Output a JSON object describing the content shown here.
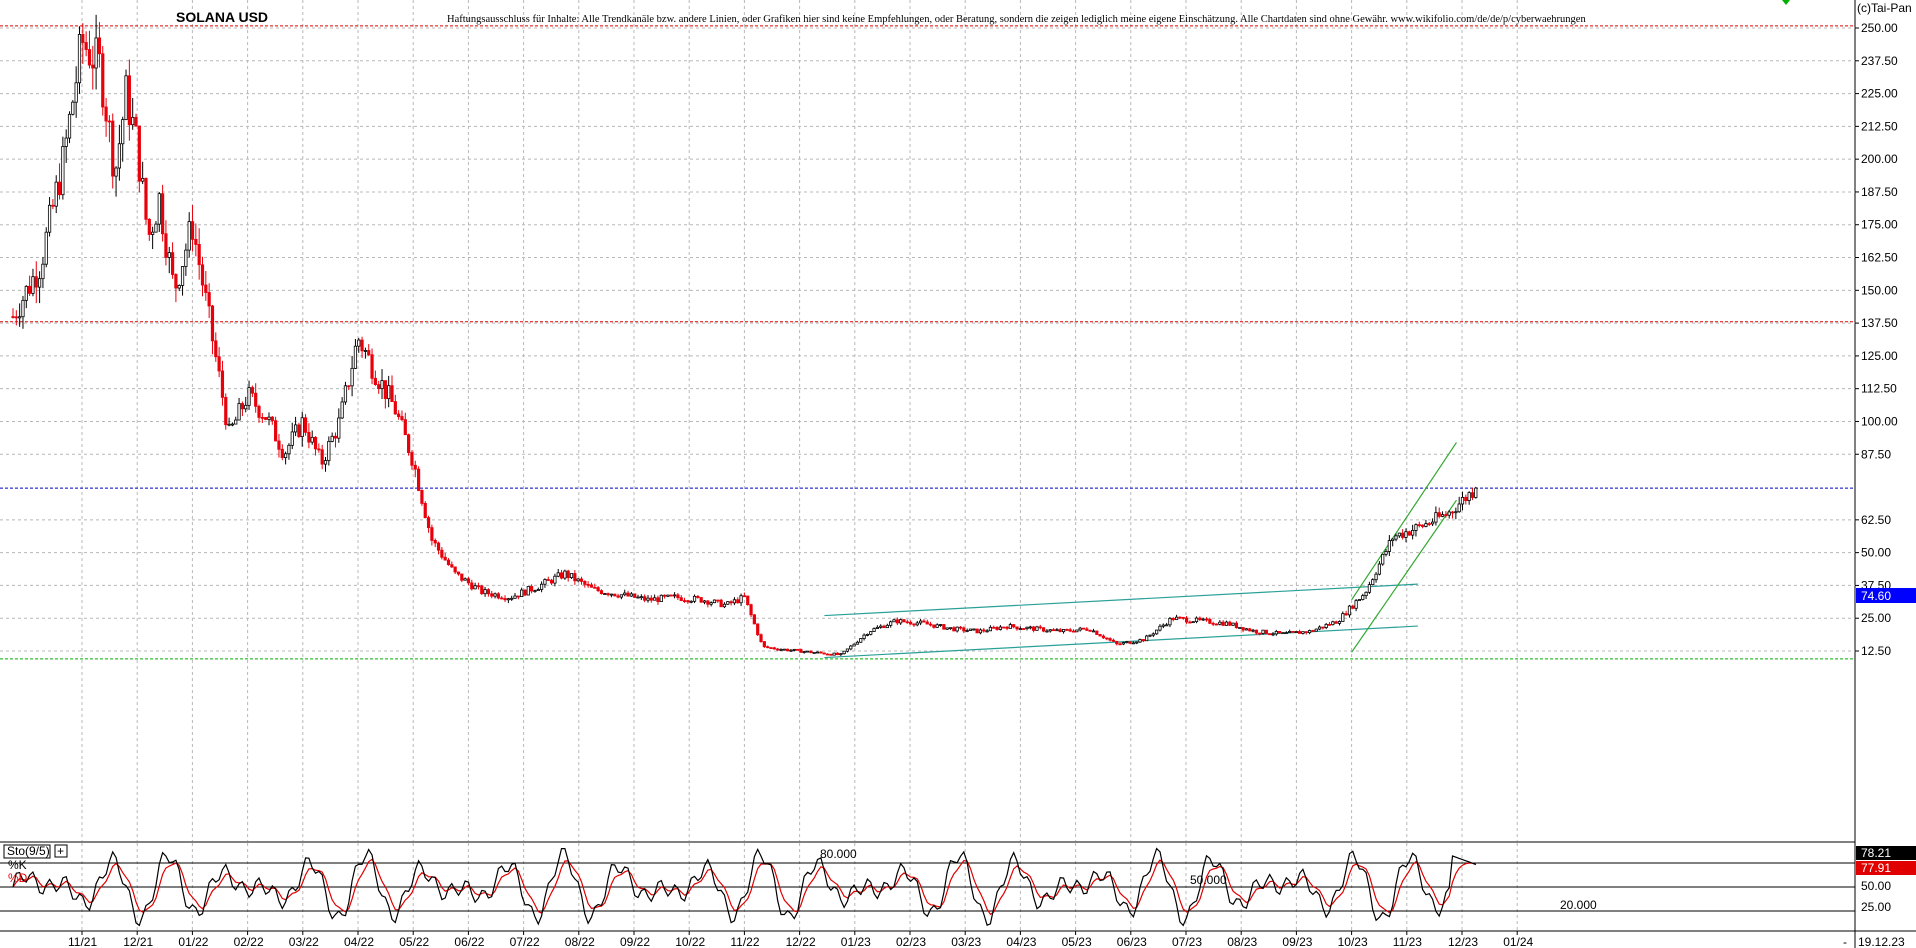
{
  "title": "SOLANA USD",
  "disclaimer": "Haftungsausschluss für Inhalte: Alle Trendkanäle bzw. andere Linien, oder Grafiken hier sind keine Empfehlungen, oder Beratung, sondern die zeigen lediglich meine eigene Einschätzung. Alle Chartdaten sind ohne Gewähr. www.wikifolio.com/de/de/p/cyberwaehrungen",
  "copyright": "(c)Tai-Pan",
  "date_label": "19.12.23",
  "last_price_label": "74.60",
  "colors": {
    "up_candle": "#000000",
    "down_candle": "#e8000b",
    "price_line": "#0000c8",
    "price_box": "#0000ff",
    "resistance": "#e00000",
    "support": "#00b000",
    "channel_teal": "#2aa098",
    "channel_green": "#2fa82f",
    "stoch_k": "#000000",
    "stoch_d": "#e00000",
    "grid": "#b8b8b8"
  },
  "chart_data": [
    {
      "type": "candlestick",
      "title": "SOLANA USD",
      "ylim": [
        3,
        258
      ],
      "yticks": [
        "250.00",
        "237.50",
        "225.00",
        "212.50",
        "200.00",
        "187.50",
        "175.00",
        "162.50",
        "150.00",
        "137.50",
        "125.00",
        "112.50",
        "100.00",
        "87.50",
        "74.60",
        "62.50",
        "50.00",
        "37.50",
        "25.00",
        "12.50"
      ],
      "x_categories": [
        "11/21",
        "12/21",
        "01/22",
        "02/22",
        "03/22",
        "04/22",
        "05/22",
        "06/22",
        "07/22",
        "08/22",
        "09/22",
        "10/22",
        "11/22",
        "12/22",
        "01/23",
        "02/23",
        "03/23",
        "04/23",
        "05/23",
        "06/23",
        "07/23",
        "08/23",
        "09/23",
        "10/23",
        "11/23",
        "12/23",
        "01/24"
      ],
      "x_range": [
        "10/21",
        "01/24"
      ],
      "last_price": 74.6,
      "horizontal_lines": [
        {
          "kind": "resistance",
          "value": 250.8
        },
        {
          "kind": "resistance",
          "value": 138
        },
        {
          "kind": "last_price",
          "value": 74.6
        },
        {
          "kind": "support",
          "value": 9.5
        }
      ],
      "close_path": [
        [
          "10/21",
          140
        ],
        [
          "10/21",
          160
        ],
        [
          "11/21",
          200
        ],
        [
          "11/21",
          245
        ],
        [
          "11/21",
          235
        ],
        [
          "12/21",
          195
        ],
        [
          "12/21",
          225
        ],
        [
          "12/21",
          205
        ],
        [
          "12/21",
          170
        ],
        [
          "12/21",
          185
        ],
        [
          "01/22",
          150
        ],
        [
          "01/22",
          175
        ],
        [
          "01/22",
          135
        ],
        [
          "02/22",
          95
        ],
        [
          "02/22",
          110
        ],
        [
          "02/22",
          102
        ],
        [
          "03/22",
          88
        ],
        [
          "03/22",
          100
        ],
        [
          "03/22",
          84
        ],
        [
          "04/22",
          100
        ],
        [
          "04/22",
          132
        ],
        [
          "04/22",
          118
        ],
        [
          "05/22",
          105
        ],
        [
          "05/22",
          85
        ],
        [
          "05/22",
          55
        ],
        [
          "06/22",
          42
        ],
        [
          "06/22",
          35
        ],
        [
          "07/22",
          33
        ],
        [
          "07/22",
          37
        ],
        [
          "08/22",
          42
        ],
        [
          "08/22",
          36
        ],
        [
          "09/22",
          34
        ],
        [
          "09/22",
          32
        ],
        [
          "10/22",
          33
        ],
        [
          "10/22",
          32
        ],
        [
          "11/22",
          30
        ],
        [
          "11/22",
          33
        ],
        [
          "11/22",
          14
        ],
        [
          "12/22",
          13
        ],
        [
          "12/22",
          12
        ],
        [
          "01/23",
          11
        ],
        [
          "01/23",
          20
        ],
        [
          "02/23",
          24
        ],
        [
          "02/23",
          23
        ],
        [
          "03/23",
          21
        ],
        [
          "03/23",
          20
        ],
        [
          "04/23",
          22
        ],
        [
          "04/23",
          21
        ],
        [
          "05/23",
          20
        ],
        [
          "05/23",
          21
        ],
        [
          "06/23",
          15
        ],
        [
          "06/23",
          17
        ],
        [
          "07/23",
          25
        ],
        [
          "07/23",
          24
        ],
        [
          "08/23",
          23
        ],
        [
          "08/23",
          20
        ],
        [
          "09/23",
          19
        ],
        [
          "09/23",
          20
        ],
        [
          "10/23",
          24
        ],
        [
          "10/23",
          35
        ],
        [
          "11/23",
          56
        ],
        [
          "11/23",
          60
        ],
        [
          "12/23",
          65
        ],
        [
          "12/23",
          74.6
        ]
      ],
      "trend_channels": [
        {
          "kind": "teal_upper",
          "from": [
            "12/22",
            26
          ],
          "to": [
            "11/23",
            38
          ]
        },
        {
          "kind": "teal_lower",
          "from": [
            "12/22",
            10
          ],
          "to": [
            "11/23",
            22
          ]
        },
        {
          "kind": "green_upper",
          "from": [
            "10/23",
            32
          ],
          "to": [
            "12/23",
            92
          ]
        },
        {
          "kind": "green_lower",
          "from": [
            "10/23",
            12
          ],
          "to": [
            "12/23",
            70
          ]
        }
      ]
    },
    {
      "type": "line",
      "title": "Sto(9/5)",
      "series": [
        {
          "name": "%K",
          "last_value": 78.21,
          "last_label": "78.21"
        },
        {
          "name": "%D",
          "last_value": 77.91,
          "last_label": "77.91"
        }
      ],
      "ylim": [
        0,
        100
      ],
      "yticks": [
        "50.00",
        "25.00"
      ],
      "levels": [
        {
          "value": 80,
          "label": "80.000"
        },
        {
          "value": 50,
          "label": "50.000"
        },
        {
          "value": 20,
          "label": "20.000"
        }
      ]
    }
  ]
}
